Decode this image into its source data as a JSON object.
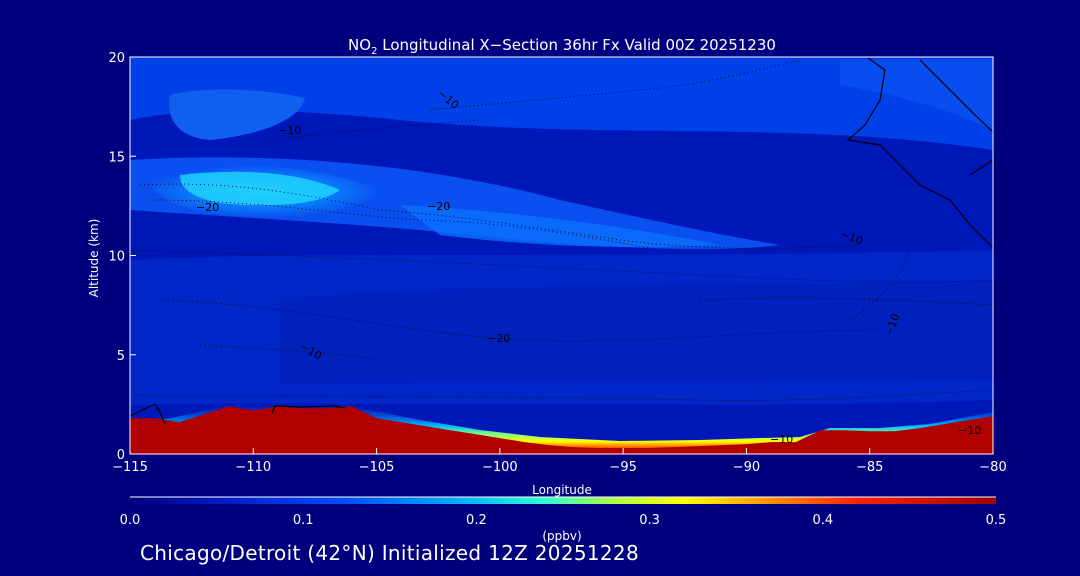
{
  "chart_data": {
    "type": "heatmap",
    "title_main": "NO",
    "title_sub": "2",
    "title_rest": " Longitudinal X−Section 36hr  Fx Valid 00Z 20251230",
    "xlabel": "Longitude",
    "ylabel": "Altitude (km)",
    "xlim": [
      -115,
      -80
    ],
    "ylim": [
      0,
      20
    ],
    "x_ticks": [
      {
        "value": -115,
        "label": "−115"
      },
      {
        "value": -110,
        "label": "−110"
      },
      {
        "value": -105,
        "label": "−105"
      },
      {
        "value": -100,
        "label": "−100"
      },
      {
        "value": -95,
        "label": "−95"
      },
      {
        "value": -90,
        "label": "−90"
      },
      {
        "value": -85,
        "label": "−85"
      },
      {
        "value": -80,
        "label": "−80"
      }
    ],
    "y_ticks": [
      {
        "value": 0,
        "label": "0"
      },
      {
        "value": 5,
        "label": "5"
      },
      {
        "value": 10,
        "label": "10"
      },
      {
        "value": 15,
        "label": "15"
      },
      {
        "value": 20,
        "label": "20"
      }
    ],
    "colorbar": {
      "min": 0.0,
      "max": 0.5,
      "unit_label": "(ppbv)",
      "ticks": [
        {
          "value": 0.0,
          "label": "0.0"
        },
        {
          "value": 0.1,
          "label": "0.1"
        },
        {
          "value": 0.2,
          "label": "0.2"
        },
        {
          "value": 0.3,
          "label": "0.3"
        },
        {
          "value": 0.4,
          "label": "0.4"
        },
        {
          "value": 0.5,
          "label": "0.5"
        }
      ],
      "colors": [
        "#00007e",
        "#0020d0",
        "#0050ff",
        "#00b0ff",
        "#30ffd0",
        "#b0ff40",
        "#ffff00",
        "#ff9000",
        "#ff2000",
        "#a00000"
      ]
    },
    "terrain_km": [
      [
        -115,
        1.8
      ],
      [
        -114,
        1.8
      ],
      [
        -113,
        1.6
      ],
      [
        -112,
        2.0
      ],
      [
        -111,
        2.4
      ],
      [
        -110,
        2.2
      ],
      [
        -109,
        2.4
      ],
      [
        -108,
        2.3
      ],
      [
        -107,
        2.3
      ],
      [
        -106,
        2.4
      ],
      [
        -105,
        1.8
      ],
      [
        -104,
        1.6
      ],
      [
        -103,
        1.4
      ],
      [
        -102,
        1.2
      ],
      [
        -101,
        1.0
      ],
      [
        -100,
        0.8
      ],
      [
        -99,
        0.6
      ],
      [
        -98,
        0.45
      ],
      [
        -97,
        0.35
      ],
      [
        -96,
        0.3
      ],
      [
        -95,
        0.3
      ],
      [
        -94,
        0.3
      ],
      [
        -93,
        0.35
      ],
      [
        -92,
        0.4
      ],
      [
        -91,
        0.45
      ],
      [
        -90,
        0.5
      ],
      [
        -89,
        0.6
      ],
      [
        -88,
        0.6
      ],
      [
        -87,
        1.2
      ],
      [
        -86,
        1.2
      ],
      [
        -85,
        1.15
      ],
      [
        -84,
        1.15
      ],
      [
        -83,
        1.3
      ],
      [
        -82,
        1.5
      ],
      [
        -81,
        1.7
      ],
      [
        -80,
        1.9
      ]
    ],
    "contour_labels": [
      "−10",
      "−10",
      "−20",
      "−20",
      "−20",
      "−10",
      "−10",
      "−10",
      "−10",
      "−10"
    ]
  },
  "footer": "Chicago/Detroit (42°N) Initialized 12Z 20251228",
  "colors": {
    "background": "#00007e",
    "field_base": "#0018b8",
    "terrain_red": "#b00000"
  }
}
